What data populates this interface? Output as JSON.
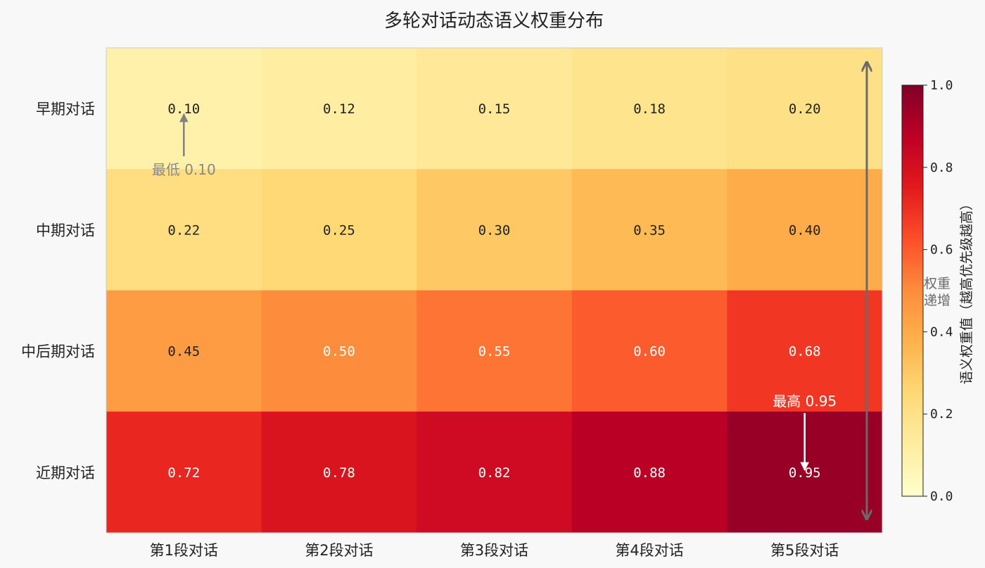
{
  "chart_data": {
    "type": "heatmap",
    "title": "多轮对话动态语义权重分布",
    "rows": [
      "早期对话",
      "中期对话",
      "中后期对话",
      "近期对话"
    ],
    "columns": [
      "第1段对话",
      "第2段对话",
      "第3段对话",
      "第4段对话",
      "第5段对话"
    ],
    "values": [
      [
        0.1,
        0.12,
        0.15,
        0.18,
        0.2
      ],
      [
        0.22,
        0.25,
        0.3,
        0.35,
        0.4
      ],
      [
        0.45,
        0.5,
        0.55,
        0.6,
        0.68
      ],
      [
        0.72,
        0.78,
        0.82,
        0.88,
        0.95
      ]
    ],
    "value_labels": [
      [
        "0.10",
        "0.12",
        "0.15",
        "0.18",
        "0.20"
      ],
      [
        "0.22",
        "0.25",
        "0.30",
        "0.35",
        "0.40"
      ],
      [
        "0.45",
        "0.50",
        "0.55",
        "0.60",
        "0.68"
      ],
      [
        "0.72",
        "0.78",
        "0.82",
        "0.88",
        "0.95"
      ]
    ],
    "colormap": "YlOrRd",
    "vmin": 0.0,
    "vmax": 1.0,
    "colorbar": {
      "label": "语义权重值（越高优先级越高）",
      "ticks": [
        0.0,
        0.2,
        0.4,
        0.6,
        0.8,
        1.0
      ],
      "tick_labels": [
        "0.0",
        "0.2",
        "0.4",
        "0.6",
        "0.8",
        "1.0"
      ]
    },
    "annotations": {
      "lowest": {
        "text": "最低 0.10",
        "row": 0,
        "col": 0
      },
      "highest": {
        "text": "最高 0.95",
        "row": 3,
        "col": 4
      },
      "trend": {
        "line1": "权重",
        "line2": "递增"
      }
    }
  }
}
